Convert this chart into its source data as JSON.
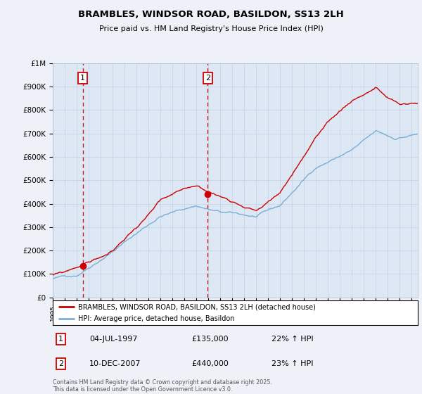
{
  "title": "BRAMBLES, WINDSOR ROAD, BASILDON, SS13 2LH",
  "subtitle": "Price paid vs. HM Land Registry's House Price Index (HPI)",
  "background_color": "#eef2f8",
  "plot_bg_color": "#dde8f4",
  "ylim": [
    0,
    1000000
  ],
  "yticks": [
    0,
    100000,
    200000,
    300000,
    400000,
    500000,
    600000,
    700000,
    800000,
    900000,
    1000000
  ],
  "ytick_labels": [
    "£0",
    "£100K",
    "£200K",
    "£300K",
    "£400K",
    "£500K",
    "£600K",
    "£700K",
    "£800K",
    "£900K",
    "£1M"
  ],
  "sale1_date": 1997.5,
  "sale1_price": 135000,
  "sale1_label": "1",
  "sale2_date": 2007.94,
  "sale2_price": 440000,
  "sale2_label": "2",
  "legend_line1": "BRAMBLES, WINDSOR ROAD, BASILDON, SS13 2LH (detached house)",
  "legend_line2": "HPI: Average price, detached house, Basildon",
  "footer": "Contains HM Land Registry data © Crown copyright and database right 2025.\nThis data is licensed under the Open Government Licence v3.0.",
  "line_color_red": "#cc0000",
  "line_color_blue": "#7aaed6",
  "grid_color": "#c8d8e8",
  "vline_color": "#cc0000",
  "xlim_start": 1995,
  "xlim_end": 2025.5
}
